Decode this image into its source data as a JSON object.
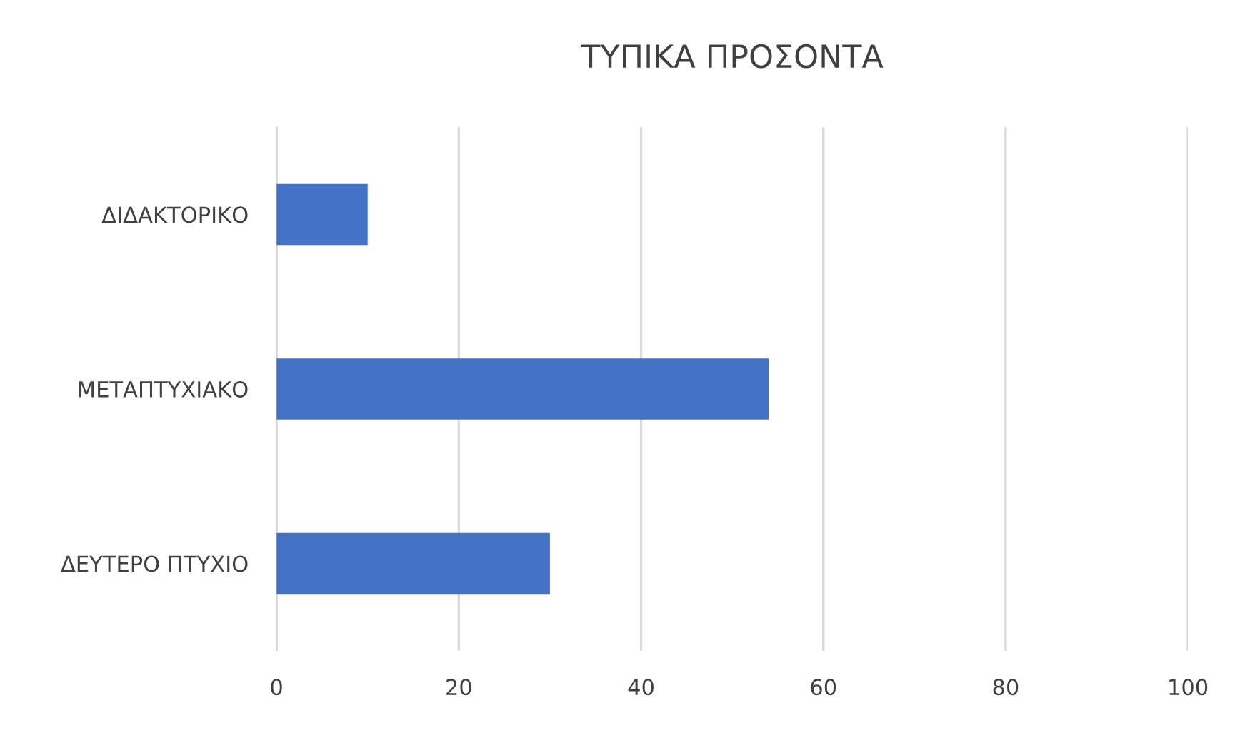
{
  "chart_data": {
    "type": "bar",
    "orientation": "horizontal",
    "title": "ΤΥΠΙΚΑ ΠΡΟΣΟΝΤΑ",
    "categories": [
      "ΔΙΔΑΚΤΟΡΙΚΟ",
      "ΜΕΤΑΠΤΥΧΙΑΚΟ",
      "ΔΕΥΤΕΡΟ ΠΤΥΧΙΟ"
    ],
    "values": [
      10,
      54,
      30
    ],
    "color": "#4472c4",
    "xlim": [
      0,
      100
    ],
    "xticks": [
      0,
      20,
      40,
      60,
      80,
      100
    ],
    "grid": "x"
  }
}
